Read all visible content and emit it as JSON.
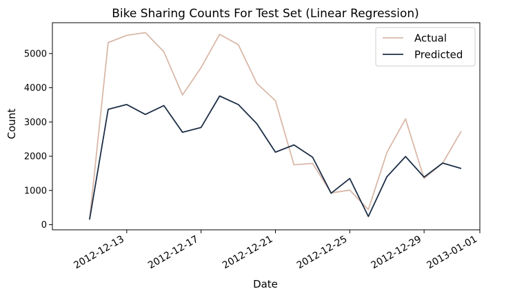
{
  "chart_data": {
    "type": "line",
    "title": "Bike Sharing Counts For Test Set (Linear Regression)",
    "xlabel": "Date",
    "ylabel": "Count",
    "x": [
      "2012-12-11",
      "2012-12-12",
      "2012-12-13",
      "2012-12-14",
      "2012-12-15",
      "2012-12-16",
      "2012-12-17",
      "2012-12-18",
      "2012-12-19",
      "2012-12-20",
      "2012-12-21",
      "2012-12-22",
      "2012-12-23",
      "2012-12-24",
      "2012-12-25",
      "2012-12-26",
      "2012-12-27",
      "2012-12-28",
      "2012-12-29",
      "2012-12-30",
      "2012-12-31"
    ],
    "xlim": [
      "2012-12-09",
      "2013-01-01"
    ],
    "x_ticks": [
      "2012-12-13",
      "2012-12-17",
      "2012-12-21",
      "2012-12-25",
      "2012-12-29",
      "2013-01-01"
    ],
    "ylim": [
      -150,
      5900
    ],
    "y_ticks": [
      0,
      1000,
      2000,
      3000,
      4000,
      5000
    ],
    "grid": false,
    "legend_position": "top-right",
    "series": [
      {
        "name": "Actual",
        "color": "#d9b8a8",
        "values": [
          150,
          5320,
          5530,
          5610,
          5050,
          3790,
          4590,
          5560,
          5260,
          4130,
          3620,
          1750,
          1790,
          930,
          1010,
          440,
          2110,
          3090,
          1350,
          1800,
          2730
        ]
      },
      {
        "name": "Predicted",
        "color": "#1b2d45",
        "values": [
          150,
          3370,
          3510,
          3220,
          3480,
          2700,
          2840,
          3760,
          3510,
          2950,
          2120,
          2330,
          1970,
          920,
          1350,
          240,
          1400,
          1990,
          1390,
          1800,
          1640
        ]
      }
    ]
  }
}
